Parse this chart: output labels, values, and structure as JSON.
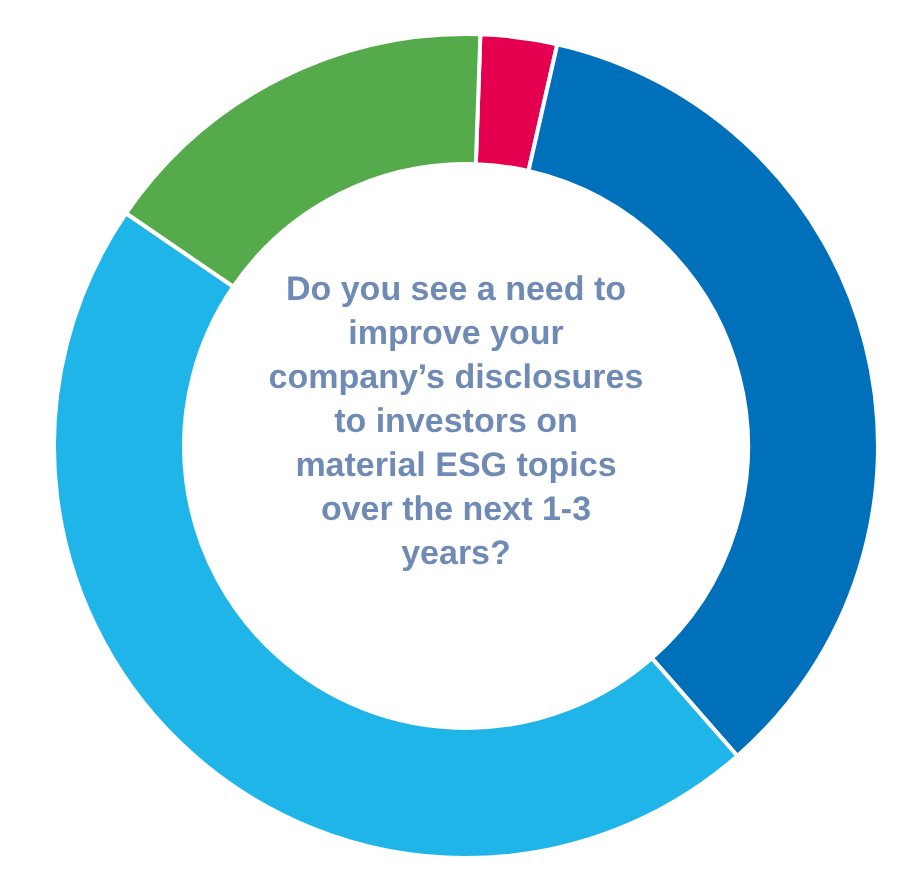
{
  "chart_data": {
    "type": "donut",
    "title": "Do you see a need to improve your company’s disclosures to investors on material ESG topics over the next 1-3 years?",
    "categories": [
      null,
      null,
      null,
      null
    ],
    "values": [
      3,
      35,
      46,
      16
    ],
    "colors": [
      "#e4004f",
      "#0070bb",
      "#1fb5e8",
      "#55ab4b"
    ]
  }
}
